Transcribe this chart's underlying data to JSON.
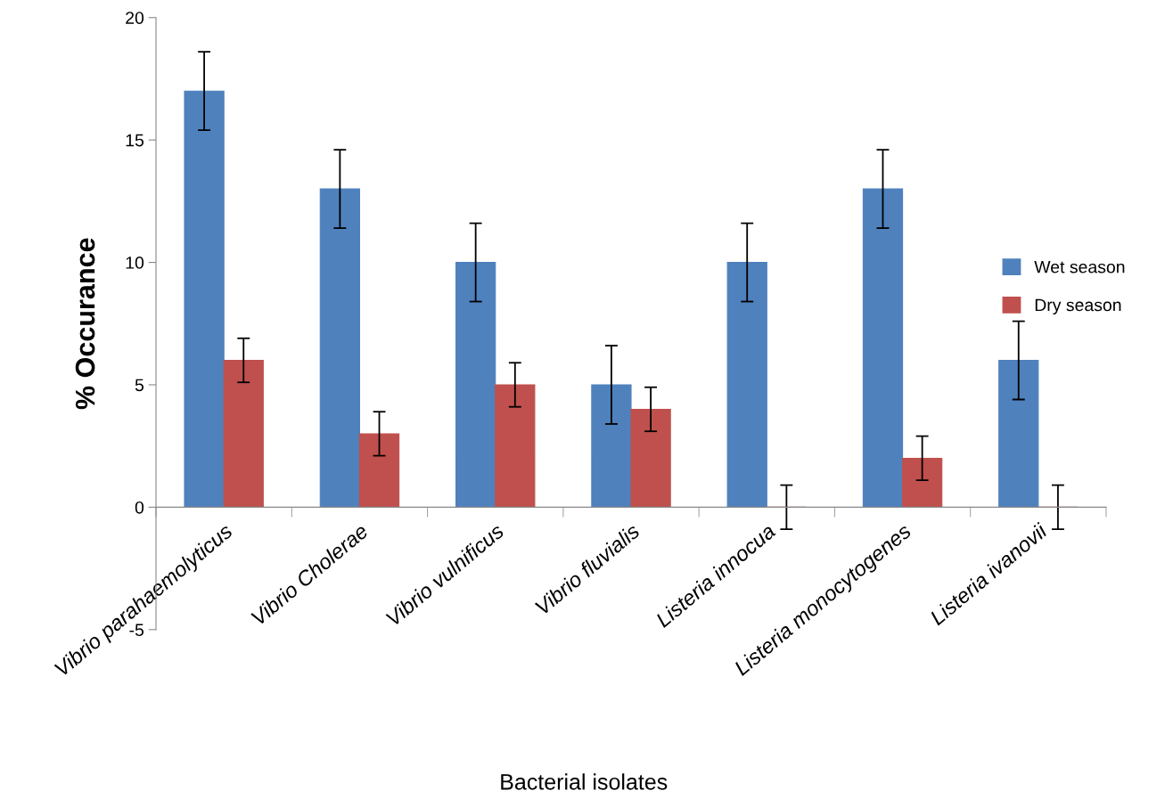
{
  "chart_data": {
    "type": "bar",
    "xlabel": "Bacterial isolates",
    "ylabel": "% Occurance",
    "categories": [
      "Vibrio parahaemolyticus",
      "Vibrio Cholerae",
      "Vibrio vulnificus",
      "Vibrio fluvialis",
      "Listeria innocua",
      "Listeria monocytogenes",
      "Listeria ivanovii"
    ],
    "series": [
      {
        "name": "Wet season",
        "color": "#4f81bd",
        "values": [
          17,
          13,
          10,
          5,
          10,
          13,
          6
        ],
        "errors": [
          1.6,
          1.6,
          1.6,
          1.6,
          1.6,
          1.6,
          1.6
        ]
      },
      {
        "name": "Dry season",
        "color": "#c0504d",
        "values": [
          6,
          3,
          5,
          4,
          0,
          2,
          0
        ],
        "errors": [
          0.9,
          0.9,
          0.9,
          0.9,
          0.9,
          0.9,
          0.9
        ]
      }
    ],
    "ylim": [
      -5,
      20
    ],
    "yticks": [
      -5,
      0,
      5,
      10,
      15,
      20
    ],
    "grid": false,
    "legend": "right"
  }
}
